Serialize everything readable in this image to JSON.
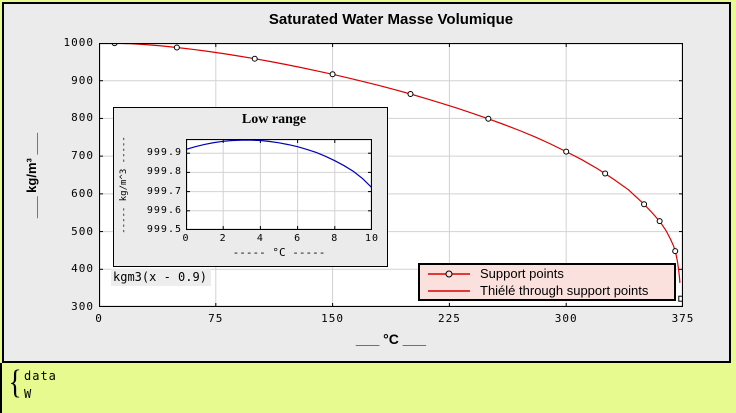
{
  "colors": {
    "curve_red": "#dd0000",
    "inset_blue": "#0000bb",
    "legend_bg": "#fbe1dd",
    "panel_bg": "#ebebeb",
    "page_bg": "#e6fa90",
    "grid": "#d2d2d2",
    "marker_stroke": "#000000"
  },
  "legend": {
    "items": [
      {
        "label": "Support points",
        "marker": "circle"
      },
      {
        "label": "Thiélé through support points",
        "marker": "line"
      }
    ]
  },
  "formula": "kgm3(x - 0.9)",
  "footer": {
    "brace": "{",
    "lines": [
      "data",
      "W"
    ]
  },
  "chart_data": [
    {
      "type": "line",
      "title": "Saturated Water Masse Volumique",
      "xlabel": "___ °C ___",
      "ylabel": "___ kg/m³ ___",
      "xlim": [
        0,
        375
      ],
      "ylim": [
        300,
        1000
      ],
      "xticks": [
        0,
        75,
        150,
        225,
        300,
        375
      ],
      "yticks": [
        300,
        400,
        500,
        600,
        700,
        800,
        900,
        1000
      ],
      "grid": true,
      "legend_position": "bottom-right",
      "series": [
        {
          "name": "Support points",
          "type": "scatter",
          "marker": "circle",
          "last_marker": "square",
          "x": [
            10,
            50,
            100,
            150,
            200,
            250,
            300,
            325,
            350,
            360,
            370,
            373.9
          ],
          "y": [
            999.7,
            988.0,
            958.4,
            917.0,
            864.7,
            799.1,
            712.1,
            654.1,
            572.4,
            527.6,
            448.0,
            322.0
          ]
        },
        {
          "name": "Thiélé through support points",
          "type": "line",
          "x": [
            0,
            10,
            20,
            30,
            40,
            50,
            60,
            70,
            80,
            90,
            100,
            110,
            120,
            130,
            140,
            150,
            160,
            170,
            180,
            190,
            200,
            210,
            220,
            230,
            240,
            250,
            260,
            270,
            280,
            290,
            300,
            310,
            320,
            330,
            340,
            350,
            355,
            360,
            364,
            367,
            369,
            370.5,
            371.5,
            372.3,
            372.8,
            373.0
          ],
          "y": [
            999.9,
            999.7,
            998.2,
            995.7,
            992.2,
            988.0,
            983.2,
            977.8,
            971.8,
            965.3,
            958.4,
            951.0,
            943.1,
            934.8,
            926.1,
            917.0,
            907.4,
            897.5,
            887.0,
            876.1,
            864.7,
            852.7,
            840.2,
            827.1,
            813.4,
            799.1,
            783.9,
            768.0,
            750.9,
            732.3,
            712.1,
            690.7,
            667.1,
            640.2,
            610.7,
            572.4,
            550.7,
            527.6,
            503.0,
            480.0,
            461.0,
            440.0,
            420.0,
            395.0,
            375.0,
            364.0
          ]
        }
      ]
    },
    {
      "type": "line",
      "title": "Low range",
      "xlabel": "----- °C -----",
      "ylabel": "----- kg/m^3 -----",
      "xlim": [
        0,
        10
      ],
      "ylim": [
        999.5,
        999.974
      ],
      "xticks": [
        0,
        2,
        4,
        6,
        8,
        10
      ],
      "yticks": [
        999.5,
        999.6,
        999.7,
        999.8,
        999.9
      ],
      "grid": true,
      "series": [
        {
          "name": "kgm3(x - 0.9)",
          "type": "line",
          "x": [
            0,
            0.5,
            1,
            1.5,
            2,
            2.5,
            3,
            3.5,
            4,
            4.5,
            5,
            5.5,
            6,
            6.5,
            7,
            7.5,
            8,
            8.5,
            9,
            9.5,
            10
          ],
          "y": [
            999.92,
            999.934,
            999.946,
            999.955,
            999.962,
            999.966,
            999.968,
            999.968,
            999.966,
            999.961,
            999.954,
            999.945,
            999.934,
            999.92,
            999.904,
            999.884,
            999.861,
            999.835,
            999.805,
            999.767,
            999.72
          ]
        }
      ]
    }
  ]
}
